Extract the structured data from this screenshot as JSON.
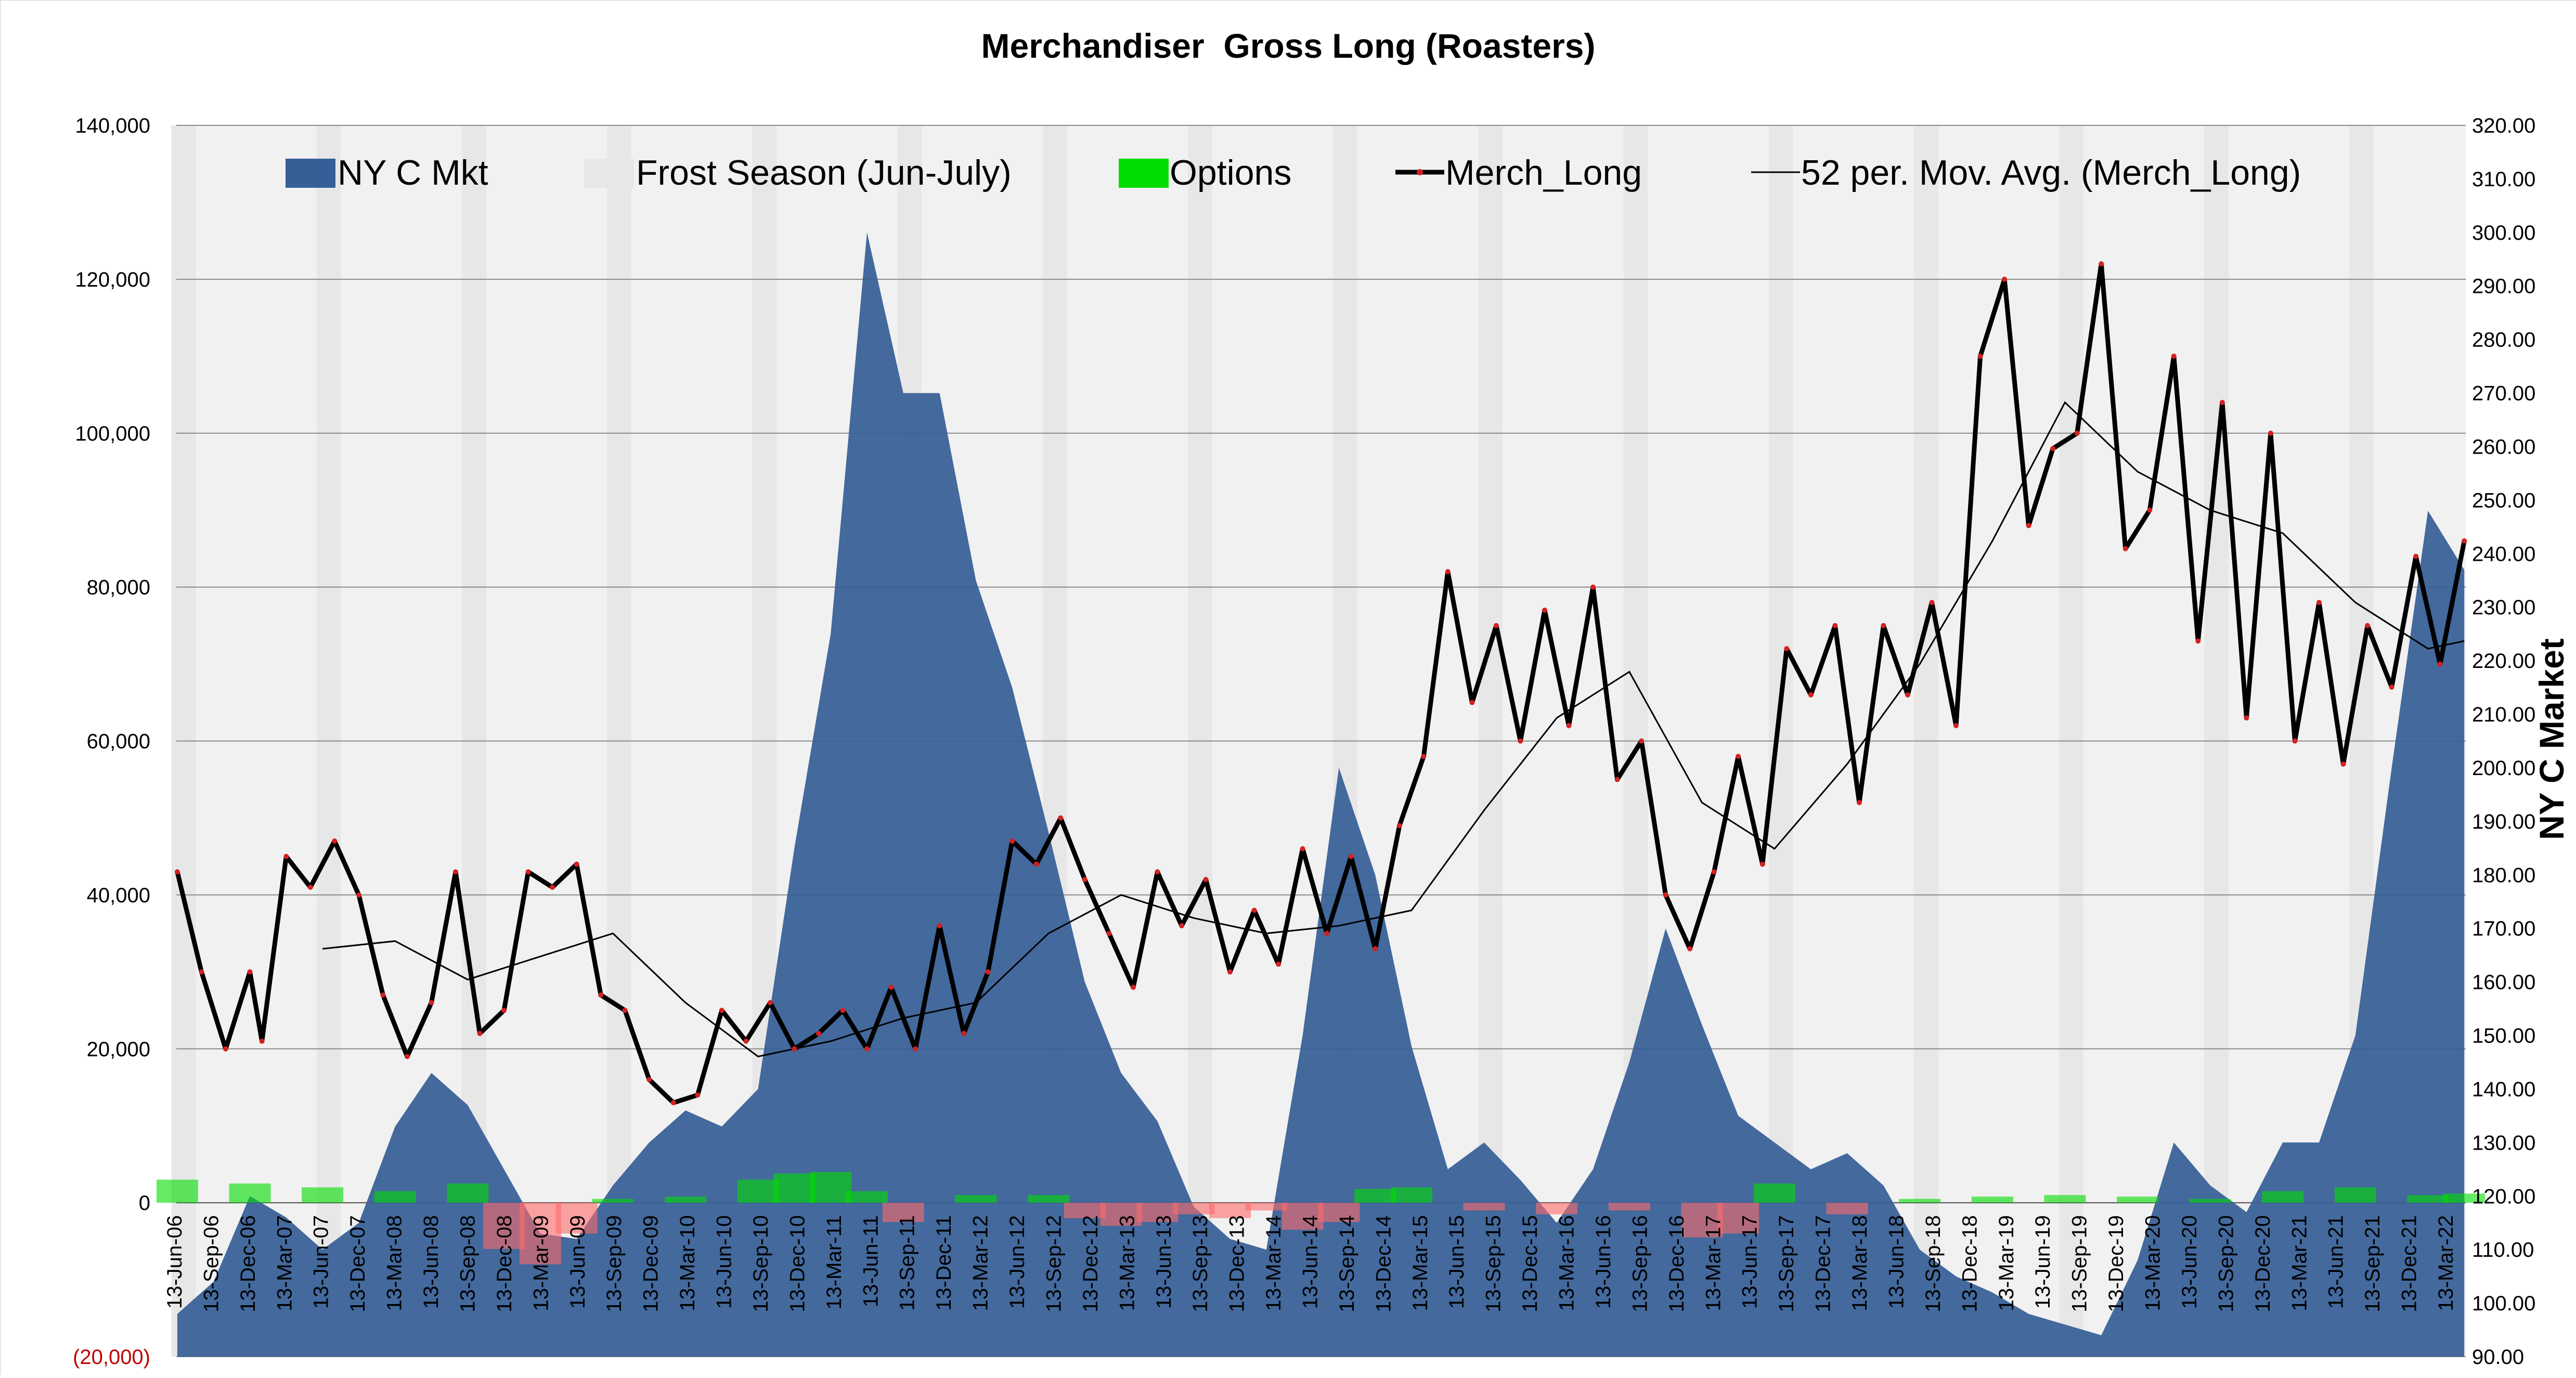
{
  "chart_data": {
    "type": "area",
    "title": "Merchandiser  Gross Long (Roasters)",
    "ylabel_left": "",
    "ylabel_right": "NY C Market",
    "left_axis": {
      "ylim": [
        -20000,
        140000
      ],
      "ticks": [
        -20000,
        0,
        20000,
        40000,
        60000,
        80000,
        100000,
        120000,
        140000
      ],
      "tick_labels": [
        "(20,000)",
        "0",
        "20,000",
        "40,000",
        "60,000",
        "80,000",
        "100,000",
        "120,000",
        "140,000"
      ]
    },
    "right_axis": {
      "ylim": [
        90,
        320
      ],
      "ticks": [
        90,
        100,
        110,
        120,
        130,
        140,
        150,
        160,
        170,
        180,
        190,
        200,
        210,
        220,
        230,
        240,
        250,
        260,
        270,
        280,
        290,
        300,
        310,
        320
      ],
      "tick_labels": [
        "90.00",
        "100.00",
        "110.00",
        "120.00",
        "130.00",
        "140.00",
        "150.00",
        "160.00",
        "170.00",
        "180.00",
        "190.00",
        "200.00",
        "210.00",
        "220.00",
        "230.00",
        "240.00",
        "250.00",
        "260.00",
        "270.00",
        "280.00",
        "290.00",
        "300.00",
        "310.00",
        "320.00"
      ]
    },
    "x_tick_labels": [
      "13-Jun-06",
      "13-Sep-06",
      "13-Dec-06",
      "13-Mar-07",
      "13-Jun-07",
      "13-Dec-07",
      "13-Mar-08",
      "13-Jun-08",
      "13-Sep-08",
      "13-Dec-08",
      "13-Mar-09",
      "13-Jun-09",
      "13-Sep-09",
      "13-Dec-09",
      "13-Mar-10",
      "13-Jun-10",
      "13-Sep-10",
      "13-Dec-10",
      "13-Mar-11",
      "13-Jun-11",
      "13-Sep-11",
      "13-Dec-11",
      "13-Mar-12",
      "13-Jun-12",
      "13-Sep-12",
      "13-Dec-12",
      "13-Mar-13",
      "13-Jun-13",
      "13-Sep-13",
      "13-Dec-13",
      "13-Mar-14",
      "13-Jun-14",
      "13-Sep-14",
      "13-Dec-14",
      "13-Mar-15",
      "13-Jun-15",
      "13-Sep-15",
      "13-Dec-15",
      "13-Mar-16",
      "13-Jun-16",
      "13-Sep-16",
      "13-Dec-16",
      "13-Mar-17",
      "13-Jun-17",
      "13-Sep-17",
      "13-Dec-17",
      "13-Mar-18",
      "13-Jun-18",
      "13-Sep-18",
      "13-Dec-18",
      "13-Mar-19",
      "13-Jun-19",
      "13-Sep-19",
      "13-Dec-19",
      "13-Mar-20",
      "13-Jun-20",
      "13-Sep-20",
      "13-Dec-20",
      "13-Mar-21",
      "13-Jun-21",
      "13-Sep-21",
      "13-Dec-21",
      "13-Mar-22"
    ],
    "legend_placement": "top",
    "grid": true,
    "series": [
      {
        "name": "NY C Mkt",
        "type": "area",
        "axis": "right",
        "color": "#365f97",
        "x": [
          "2006-06",
          "2006-09",
          "2006-12",
          "2007-03",
          "2007-06",
          "2007-09",
          "2007-12",
          "2008-03",
          "2008-06",
          "2008-09",
          "2008-12",
          "2009-03",
          "2009-06",
          "2009-09",
          "2009-12",
          "2010-03",
          "2010-06",
          "2010-09",
          "2010-12",
          "2011-03",
          "2011-06",
          "2011-09",
          "2011-12",
          "2012-03",
          "2012-06",
          "2012-09",
          "2012-12",
          "2013-03",
          "2013-06",
          "2013-09",
          "2013-12",
          "2014-03",
          "2014-06",
          "2014-09",
          "2014-12",
          "2015-03",
          "2015-06",
          "2015-09",
          "2015-12",
          "2016-03",
          "2016-06",
          "2016-09",
          "2016-12",
          "2017-03",
          "2017-06",
          "2017-09",
          "2017-12",
          "2018-03",
          "2018-06",
          "2018-09",
          "2018-12",
          "2019-03",
          "2019-06",
          "2019-09",
          "2019-12",
          "2020-03",
          "2020-06",
          "2020-09",
          "2020-12",
          "2021-03",
          "2021-06",
          "2021-09",
          "2021-12",
          "2022-03"
        ],
        "values": [
          98,
          104,
          120,
          116,
          110,
          115,
          133,
          143,
          137,
          125,
          113,
          112,
          122,
          130,
          136,
          133,
          140,
          185,
          225,
          300,
          270,
          270,
          235,
          215,
          188,
          160,
          143,
          134,
          118,
          112,
          110,
          150,
          200,
          180,
          148,
          125,
          130,
          123,
          115,
          125,
          145,
          170,
          152,
          135,
          130,
          125,
          128,
          122,
          110,
          105,
          102,
          98,
          96,
          94,
          108,
          130,
          122,
          117,
          130,
          130,
          150,
          200,
          248,
          237
        ]
      },
      {
        "name": "Frost Season (Jun-July)",
        "type": "band",
        "color": "#e7e7e7",
        "periods": [
          "2006",
          "2007",
          "2008",
          "2009",
          "2010",
          "2011",
          "2012",
          "2013",
          "2014",
          "2015",
          "2016",
          "2017",
          "2018",
          "2019",
          "2020",
          "2021"
        ]
      },
      {
        "name": "Options",
        "type": "bar",
        "axis": "left",
        "color": "#00dd00",
        "negative_color": "#ff6b6b",
        "x": [
          "2006-06",
          "2006-12",
          "2007-06",
          "2007-12",
          "2008-06",
          "2008-09",
          "2008-12",
          "2009-03",
          "2009-06",
          "2009-12",
          "2010-06",
          "2010-09",
          "2010-12",
          "2011-03",
          "2011-06",
          "2011-12",
          "2012-06",
          "2012-09",
          "2012-12",
          "2013-03",
          "2013-06",
          "2013-09",
          "2013-12",
          "2014-03",
          "2014-06",
          "2014-09",
          "2014-12",
          "2015-06",
          "2015-12",
          "2016-06",
          "2016-12",
          "2017-03",
          "2017-06",
          "2017-12",
          "2018-06",
          "2018-12",
          "2019-06",
          "2019-12",
          "2020-06",
          "2020-12",
          "2021-06",
          "2021-12",
          "2022-03"
        ],
        "values": [
          3000,
          2500,
          2000,
          1500,
          2500,
          -6000,
          -8000,
          -4000,
          500,
          800,
          3000,
          3800,
          4000,
          1500,
          -2500,
          1000,
          1000,
          -2000,
          -3000,
          -2500,
          -1500,
          -2000,
          -1000,
          -3500,
          -2500,
          1800,
          2000,
          -1000,
          -1500,
          -1000,
          -4500,
          -4000,
          2500,
          -1500,
          500,
          800,
          1000,
          800,
          500,
          1500,
          2000,
          1000,
          1200
        ]
      },
      {
        "name": "Merch_Long",
        "type": "line",
        "axis": "left",
        "color": "#000000",
        "marker_color": "#d32020",
        "x": [
          "2006-06",
          "2006-08",
          "2006-10",
          "2006-12",
          "2007-01",
          "2007-03",
          "2007-05",
          "2007-07",
          "2007-09",
          "2007-11",
          "2008-01",
          "2008-03",
          "2008-05",
          "2008-07",
          "2008-09",
          "2008-11",
          "2009-01",
          "2009-03",
          "2009-05",
          "2009-07",
          "2009-09",
          "2009-11",
          "2010-01",
          "2010-03",
          "2010-05",
          "2010-07",
          "2010-09",
          "2010-11",
          "2011-01",
          "2011-03",
          "2011-05",
          "2011-07",
          "2011-09",
          "2011-11",
          "2012-01",
          "2012-03",
          "2012-05",
          "2012-07",
          "2012-09",
          "2012-11",
          "2013-01",
          "2013-03",
          "2013-05",
          "2013-07",
          "2013-09",
          "2013-11",
          "2014-01",
          "2014-03",
          "2014-05",
          "2014-07",
          "2014-09",
          "2014-11",
          "2015-01",
          "2015-03",
          "2015-05",
          "2015-07",
          "2015-09",
          "2015-11",
          "2016-01",
          "2016-03",
          "2016-05",
          "2016-07",
          "2016-09",
          "2016-11",
          "2017-01",
          "2017-03",
          "2017-05",
          "2017-07",
          "2017-09",
          "2017-11",
          "2018-01",
          "2018-03",
          "2018-05",
          "2018-07",
          "2018-09",
          "2018-11",
          "2019-01",
          "2019-03",
          "2019-05",
          "2019-07",
          "2019-09",
          "2019-11",
          "2020-01",
          "2020-03",
          "2020-05",
          "2020-07",
          "2020-09",
          "2020-11",
          "2021-01",
          "2021-03",
          "2021-05",
          "2021-07",
          "2021-09",
          "2021-11",
          "2022-01",
          "2022-03"
        ],
        "values": [
          43000,
          30000,
          20000,
          30000,
          21000,
          45000,
          41000,
          47000,
          40000,
          27000,
          19000,
          26000,
          43000,
          22000,
          25000,
          43000,
          41000,
          44000,
          27000,
          25000,
          16000,
          13000,
          14000,
          25000,
          21000,
          26000,
          20000,
          22000,
          25000,
          20000,
          28000,
          20000,
          36000,
          22000,
          30000,
          47000,
          44000,
          50000,
          42000,
          35000,
          28000,
          43000,
          36000,
          42000,
          30000,
          38000,
          31000,
          46000,
          35000,
          45000,
          33000,
          49000,
          58000,
          82000,
          65000,
          75000,
          60000,
          77000,
          62000,
          80000,
          55000,
          60000,
          40000,
          33000,
          43000,
          58000,
          44000,
          72000,
          66000,
          75000,
          52000,
          75000,
          66000,
          78000,
          62000,
          110000,
          120000,
          88000,
          98000,
          100000,
          122000,
          85000,
          90000,
          110000,
          73000,
          104000,
          63000,
          100000,
          60000,
          78000,
          57000,
          75000,
          67000,
          84000,
          70000,
          86000
        ]
      },
      {
        "name": "52 per. Mov. Avg. (Merch_Long)",
        "type": "line",
        "axis": "left",
        "color": "#000000",
        "x": [
          "2007-06",
          "2007-12",
          "2008-06",
          "2008-12",
          "2009-06",
          "2009-12",
          "2010-06",
          "2010-12",
          "2011-06",
          "2011-12",
          "2012-06",
          "2012-12",
          "2013-06",
          "2013-12",
          "2014-06",
          "2014-12",
          "2015-06",
          "2015-12",
          "2016-06",
          "2016-12",
          "2017-06",
          "2017-12",
          "2018-06",
          "2018-12",
          "2019-06",
          "2019-12",
          "2020-06",
          "2020-12",
          "2021-06",
          "2021-12",
          "2022-03"
        ],
        "values": [
          33000,
          34000,
          29000,
          32000,
          35000,
          26000,
          19000,
          21000,
          24000,
          26000,
          35000,
          40000,
          37000,
          35000,
          36000,
          38000,
          51000,
          63000,
          69000,
          52000,
          46000,
          57000,
          70000,
          86000,
          104000,
          95000,
          90000,
          87000,
          78000,
          72000,
          73000
        ]
      }
    ]
  }
}
